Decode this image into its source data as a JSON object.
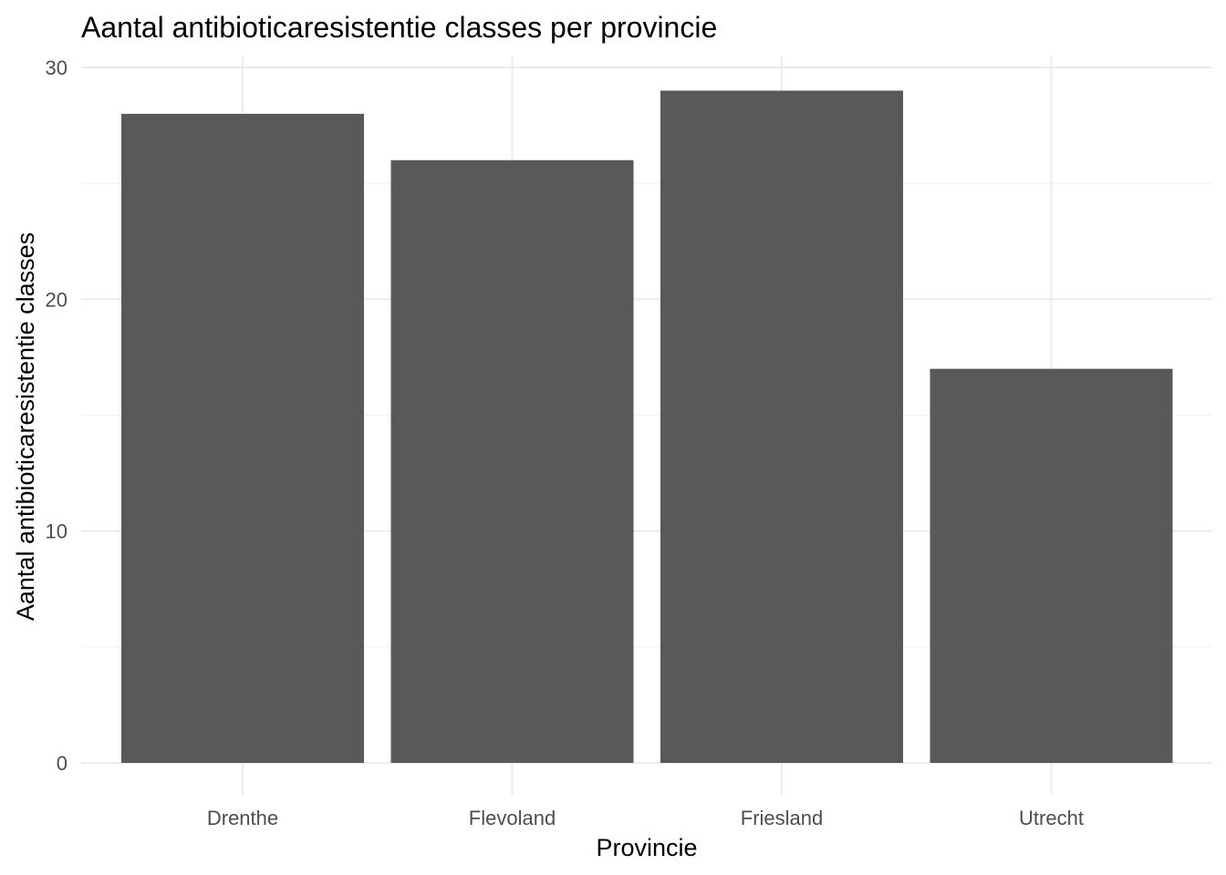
{
  "chart_data": {
    "type": "bar",
    "title": "Aantal antibioticaresistentie classes per provincie",
    "xlabel": "Provincie",
    "ylabel": "Aantal antibioticaresistentie classes",
    "categories": [
      "Drenthe",
      "Flevoland",
      "Friesland",
      "Utrecht"
    ],
    "values": [
      28,
      26,
      29,
      17
    ],
    "ylim": [
      0,
      30
    ],
    "yticks": [
      0,
      10,
      20,
      30
    ],
    "grid": true,
    "legend": "none",
    "colors": {
      "bar": "#595959",
      "grid_major": "#ebebeb",
      "grid_minor": "#f2f2f2",
      "tick_text": "#4d4d4d",
      "background": "#ffffff"
    }
  }
}
